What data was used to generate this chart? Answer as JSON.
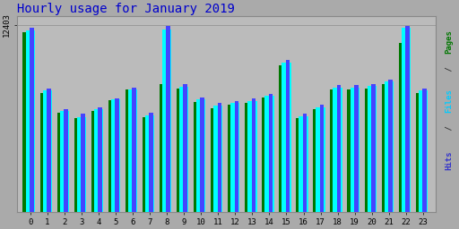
{
  "title": "Hourly usage for January 2019",
  "title_color": "#0000cc",
  "title_fontsize": 10,
  "background_color": "#aaaaaa",
  "plot_bg_color": "#bbbbbb",
  "hours": [
    0,
    1,
    2,
    3,
    4,
    5,
    6,
    7,
    8,
    9,
    10,
    11,
    12,
    13,
    14,
    15,
    16,
    17,
    18,
    19,
    20,
    21,
    22,
    23
  ],
  "pages": [
    11900,
    7900,
    6600,
    6200,
    6700,
    7400,
    8100,
    6300,
    8500,
    8200,
    7300,
    6900,
    7100,
    7200,
    7600,
    9700,
    6200,
    6800,
    8100,
    8100,
    8200,
    8500,
    11200,
    7900
  ],
  "files": [
    12050,
    8050,
    6700,
    6300,
    6800,
    7450,
    8150,
    6400,
    12100,
    8300,
    7450,
    7050,
    7200,
    7350,
    7700,
    9900,
    6350,
    6950,
    8250,
    8250,
    8350,
    8650,
    12200,
    8050
  ],
  "hits": [
    12200,
    8200,
    6800,
    6500,
    6950,
    7550,
    8250,
    6550,
    12350,
    8500,
    7600,
    7200,
    7350,
    7500,
    7850,
    10100,
    6500,
    7100,
    8400,
    8400,
    8500,
    8800,
    12350,
    8200
  ],
  "ylim": [
    0,
    13000
  ],
  "ytick_val": 12403,
  "ytick_label": "12403",
  "bar_width": 0.27,
  "pages_color": "#007700",
  "files_color": "#00ffff",
  "hits_color": "#4444ff",
  "grid_color": "#999999",
  "spine_color": "#888888",
  "label_pages_color": "#007700",
  "label_files_color": "#00ccff",
  "label_hits_color": "#3333cc",
  "label_sep_color": "#333333"
}
